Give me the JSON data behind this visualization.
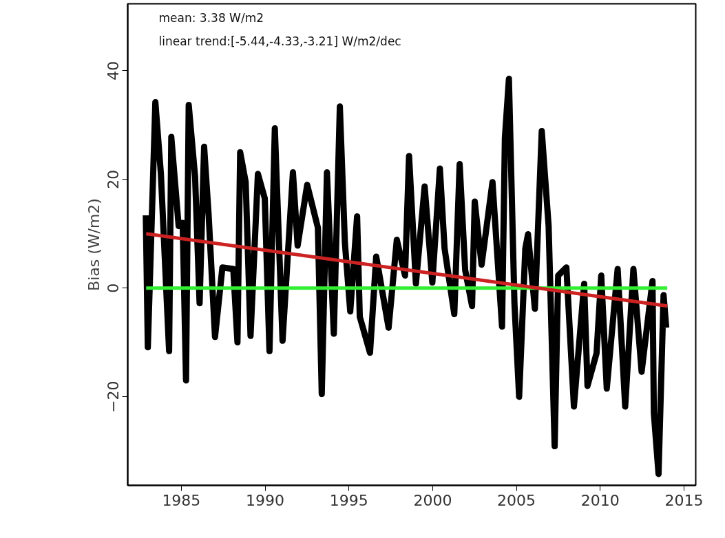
{
  "chart_data": {
    "type": "line",
    "ylabel": "Bias (W/m2)",
    "xlim": [
      1981.8,
      2015.7
    ],
    "ylim": [
      -36.3,
      52.3
    ],
    "xticks": [
      1985,
      1990,
      1995,
      2000,
      2005,
      2010,
      2015
    ],
    "yticks": [
      -20,
      0,
      20,
      40
    ],
    "grid": false,
    "marker": "none",
    "line_style": "solid",
    "annotations": [
      "mean: 3.38 W/m2",
      "linear trend:[-5.44,-4.33,-3.21] W/m2/dec"
    ],
    "series": [
      {
        "color": "#000000",
        "x": [
          1982.88,
          1983.0,
          1983.45,
          1983.78,
          1984.27,
          1984.4,
          1984.84,
          1985.08,
          1985.28,
          1985.44,
          1985.82,
          1986.09,
          1986.36,
          1986.63,
          1987.01,
          1987.45,
          1988.1,
          1988.35,
          1988.51,
          1988.84,
          1989.13,
          1989.57,
          1989.98,
          1990.26,
          1990.58,
          1991.04,
          1991.66,
          1991.94,
          1992.51,
          1993.15,
          1993.38,
          1993.69,
          1994.1,
          1994.46,
          1994.76,
          1995.08,
          1995.49,
          1995.65,
          1996.26,
          1996.63,
          1997.37,
          1997.86,
          1998.35,
          1998.59,
          1999.0,
          1999.52,
          1999.98,
          2000.43,
          2000.71,
          2001.29,
          2001.61,
          2001.94,
          2002.35,
          2002.51,
          2002.92,
          2003.57,
          2004.14,
          2004.31,
          2004.55,
          2004.88,
          2005.16,
          2005.53,
          2005.69,
          2006.1,
          2006.51,
          2006.92,
          2007.28,
          2007.49,
          2007.98,
          2008.43,
          2009.04,
          2009.24,
          2009.78,
          2010.06,
          2010.39,
          2011.04,
          2011.49,
          2011.98,
          2012.47,
          2013.12,
          2013.2,
          2013.48,
          2013.78,
          2013.94
        ],
        "values": [
          13.4,
          -10.9,
          34.2,
          21,
          -11.6,
          27.8,
          11.4,
          12,
          -17,
          33.7,
          20.5,
          -2.8,
          26,
          13.4,
          -9,
          3.8,
          3.5,
          -10,
          25,
          19.5,
          -8.8,
          21,
          16.5,
          -11.6,
          29.4,
          -9.7,
          21.3,
          7.8,
          19,
          11.1,
          -19.5,
          21.3,
          -8.4,
          33.4,
          8.4,
          -4.3,
          13.2,
          -5.3,
          -11.9,
          5.8,
          -7.3,
          8.9,
          2.3,
          24.3,
          0.8,
          18.7,
          1.0,
          22,
          7.3,
          -4.8,
          22.8,
          3.3,
          -3.3,
          15.9,
          4.3,
          19.5,
          -7.1,
          27.6,
          38.5,
          -2.8,
          -20,
          7.3,
          9.9,
          -3.8,
          28.9,
          11.4,
          -29.1,
          2.3,
          3.8,
          -21.8,
          0.8,
          -18,
          -12,
          2.3,
          -18.5,
          3.5,
          -21.8,
          3.5,
          -15.4,
          1.3,
          -23,
          -34.2,
          -1.3,
          -7.3
        ]
      },
      {
        "color": "#33ee33",
        "x": [
          1982.9,
          2014.0
        ],
        "values": [
          0,
          0
        ]
      },
      {
        "color": "#cc2222",
        "x": [
          1982.9,
          2014.0
        ],
        "values": [
          10,
          -3.3
        ]
      }
    ]
  }
}
